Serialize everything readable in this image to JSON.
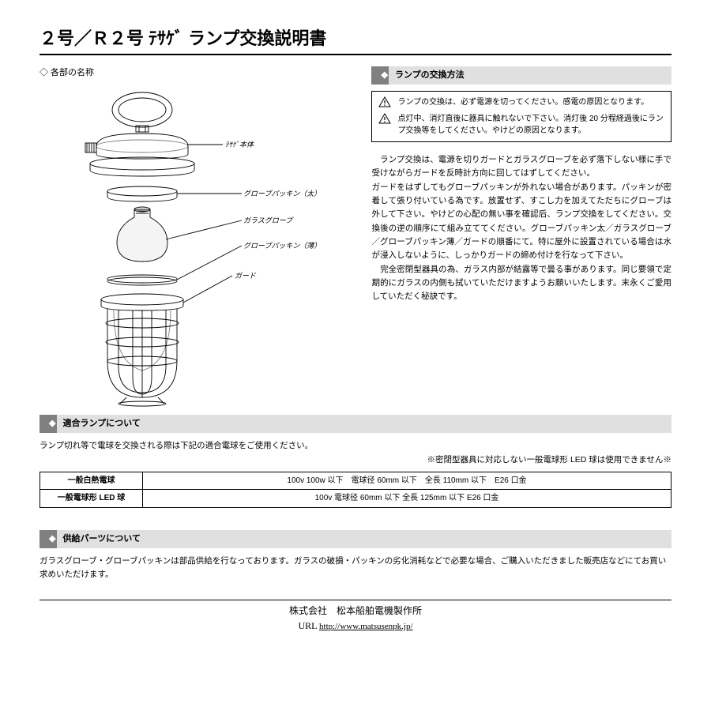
{
  "title_parts": [
    "２号／Ｒ２号",
    "ﾃｻｹﾞ",
    "ランプ交換説明書"
  ],
  "left": {
    "subhead": "◇ 各部の名称",
    "labels": {
      "body": "ﾃｻｹﾞ本体",
      "packing_thick": "グローブパッキン（太）",
      "glass_globe": "ガラスグローブ",
      "packing_thin": "グローブパッキン（薄）",
      "guard": "ガード"
    }
  },
  "right": {
    "section_title": "ランプの交換方法",
    "warnings": [
      "ランプの交換は、必ず電源を切ってください。感電の原因となります。",
      "点灯中、消灯直後に器具に触れないで下さい。消灯後 20 分程経過後にランプ交換等をしてください。やけどの原因となります。"
    ],
    "body": "　ランプ交換は、電源を切りガードとガラスグローブを必ず落下しない様に手で受けながらガードを反時計方向に回してはずしてください。\nガードをはずしてもグローブパッキンが外れない場合があります。パッキンが密着して張り付いている為です。放置せず、すこし力を加えてただちにグローブは外して下さい。やけどの心配の無い事を確認后、ランプ交換をしてください。交換後の逆の順序にて組み立ててください。グローブパッキン太／ガラスグローブ／グローブパッキン薄／ガードの順番にて。特に屋外に設置されている場合は水が浸入しないように、しっかりガードの締め付けを行なって下さい。\n　完全密閉型器具の為、ガラス内部が結露等で曇る事があります。同じ要領で定期的にガラスの内側も拭いていただけますようお願いいたします。末永くご愛用していただく秘訣です。"
  },
  "compat": {
    "section_title": "適合ランプについて",
    "note1": "ランプ切れ等で電球を交換される際は下記の適合電球をご使用ください。",
    "note2": "※密閉型器具に対応しない一般電球形 LED 球は使用できません※",
    "table": {
      "rows": [
        {
          "label": "一般白熱電球",
          "spec": "100v  100w 以下　電球径 60mm 以下　全長 110mm 以下　E26 口金"
        },
        {
          "label": "一般電球形 LED 球",
          "spec": "100v  電球径 60mm 以下  全長 125mm 以下  E26 口金"
        }
      ]
    }
  },
  "supply": {
    "section_title": "供給パーツについて",
    "text": "ガラスグローブ・グローブパッキンは部品供給を行なっております。ガラスの破損・パッキンの劣化消耗などで必要な場合、ご購入いただきました販売店などにてお買い求めいただけます。"
  },
  "footer": {
    "company": "株式会社　松本船舶電機製作所",
    "url_label": "URL",
    "url": "http://www.matsusenpk.jp/"
  },
  "colors": {
    "bar_bg": "#e0e0e0",
    "bar_accent": "#808080",
    "diagram_bg": "#f4f4f4"
  }
}
